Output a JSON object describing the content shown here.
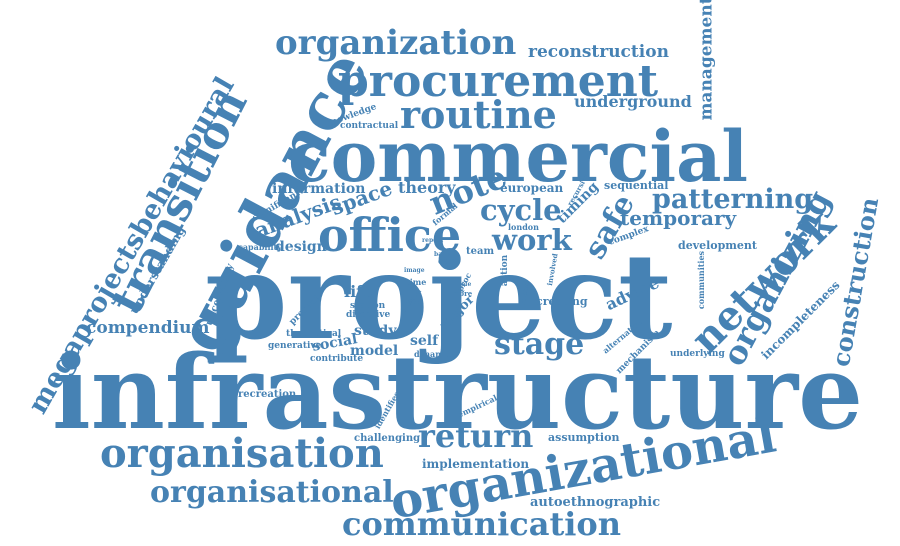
{
  "color": "#4682b4",
  "words": [
    "project",
    "infrastructure",
    "commercial",
    "guidance",
    "organizational",
    "transition",
    "procurement",
    "organization",
    "office",
    "routine",
    "organisation",
    "organisational",
    "communication",
    "megaprojectsbehavioural",
    "network",
    "organizing",
    "construction",
    "return",
    "stage",
    "patterning",
    "cycle",
    "work",
    "note",
    "safe",
    "management",
    "reconstruction",
    "underground",
    "analysis",
    "space",
    "temporary",
    "compendium",
    "information",
    "theory",
    "european",
    "timing",
    "sequential",
    "development",
    "design",
    "advice",
    "incompleteness",
    "autoethnographic",
    "implementation",
    "assumption",
    "challenging",
    "life",
    "study",
    "model",
    "self",
    "social",
    "major",
    "creating",
    "understanding",
    "uncertainty",
    "recreation",
    "knowledge",
    "contractual",
    "significant",
    "capability",
    "present",
    "theoretical",
    "generative",
    "contribute",
    "station",
    "directive",
    "team",
    "london",
    "formal",
    "complex",
    "case",
    "bank",
    "report",
    "image",
    "time",
    "proc",
    "action",
    "involved",
    "recursive",
    "alternative",
    "mechanism",
    "underlying",
    "communities",
    "identifies",
    "empirical",
    "dynamic",
    "role",
    "more",
    "find",
    "political",
    "finding"
  ]
}
